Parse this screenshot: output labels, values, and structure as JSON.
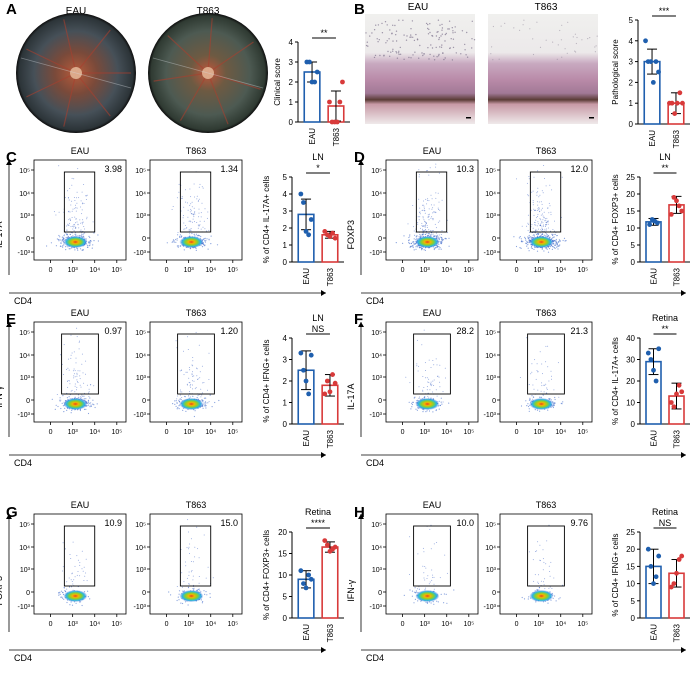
{
  "colors": {
    "eau": "#1f5fae",
    "t863": "#d83a3a",
    "axis": "#000000"
  },
  "panels": {
    "A": {
      "letter": "A",
      "images": [
        "EAU",
        "T863"
      ],
      "chart": {
        "ylabel": "Clinical score",
        "categories": [
          "EAU",
          "T863"
        ],
        "sig": "**",
        "ylim": [
          0,
          4
        ],
        "ticks": [
          0,
          1,
          2,
          3,
          4
        ],
        "means": [
          2.5,
          0.8
        ],
        "err": [
          0.5,
          0.75
        ],
        "points": [
          [
            3,
            3,
            2,
            2,
            2.5
          ],
          [
            1,
            0,
            0,
            0,
            1,
            2
          ]
        ]
      }
    },
    "B": {
      "letter": "B",
      "images": [
        "EAU",
        "T863"
      ],
      "chart": {
        "ylabel": "Pathological score",
        "categories": [
          "EAU",
          "T863"
        ],
        "sig": "***",
        "ylim": [
          0,
          5
        ],
        "ticks": [
          0,
          1,
          2,
          3,
          4,
          5
        ],
        "means": [
          3.0,
          1.0
        ],
        "err": [
          0.6,
          0.5
        ],
        "points": [
          [
            4,
            3,
            3,
            2,
            3,
            2.5
          ],
          [
            1,
            1,
            0.5,
            1,
            1.5,
            1
          ]
        ]
      }
    },
    "C": {
      "letter": "C",
      "ylabel": "IL-17A",
      "xlabel": "CD4",
      "flows": [
        {
          "title": "EAU",
          "pct": "3.98"
        },
        {
          "title": "T863",
          "pct": "1.34"
        }
      ],
      "chart": {
        "title": "LN",
        "ylabel": "% of CD4+ IL-17A+ cells",
        "categories": [
          "EAU",
          "T863"
        ],
        "sig": "*",
        "ylim": [
          0,
          5
        ],
        "ticks": [
          0,
          1,
          2,
          3,
          4,
          5
        ],
        "means": [
          2.8,
          1.6
        ],
        "err": [
          0.9,
          0.2
        ],
        "points": [
          [
            4,
            3.5,
            1.8,
            1.6,
            2.5
          ],
          [
            1.8,
            1.6,
            1.5,
            1.7,
            1.4
          ]
        ]
      }
    },
    "D": {
      "letter": "D",
      "ylabel": "FOXP3",
      "xlabel": "CD4",
      "flows": [
        {
          "title": "EAU",
          "pct": "10.3"
        },
        {
          "title": "T863",
          "pct": "12.0"
        }
      ],
      "chart": {
        "title": "LN",
        "ylabel": "% of CD4+ FOXP3+ cells",
        "categories": [
          "EAU",
          "T863"
        ],
        "sig": "**",
        "ylim": [
          0,
          25
        ],
        "ticks": [
          0,
          5,
          10,
          15,
          20,
          25
        ],
        "means": [
          11.8,
          16.8
        ],
        "err": [
          1.0,
          2.5
        ],
        "points": [
          [
            11,
            12.5,
            12,
            11.5
          ],
          [
            14,
            19,
            18,
            16.5,
            15
          ]
        ]
      }
    },
    "E": {
      "letter": "E",
      "ylabel": "IFN-γ",
      "xlabel": "CD4",
      "flows": [
        {
          "title": "EAU",
          "pct": "0.97"
        },
        {
          "title": "T863",
          "pct": "1.20"
        }
      ],
      "chart": {
        "title": "LN",
        "ylabel": "% of CD4+ IFNG+ cells",
        "categories": [
          "EAU",
          "T863"
        ],
        "sig": "NS",
        "ylim": [
          0,
          4
        ],
        "ticks": [
          0,
          1,
          2,
          3,
          4
        ],
        "means": [
          2.5,
          1.8
        ],
        "err": [
          0.9,
          0.5
        ],
        "points": [
          [
            3.3,
            2.5,
            2.0,
            1.4,
            3.2
          ],
          [
            1.4,
            2.0,
            1.5,
            2.3,
            1.9
          ]
        ]
      }
    },
    "F": {
      "letter": "F",
      "ylabel": "IL-17A",
      "xlabel": "CD4",
      "flows": [
        {
          "title": "EAU",
          "pct": "28.2"
        },
        {
          "title": "T863",
          "pct": "21.3"
        }
      ],
      "chart": {
        "title": "Retina",
        "ylabel": "% of CD4+ IL-17A+ cells",
        "categories": [
          "EAU",
          "T863"
        ],
        "sig": "**",
        "ylim": [
          0,
          40
        ],
        "ticks": [
          0,
          10,
          20,
          30,
          40
        ],
        "means": [
          29,
          13
        ],
        "err": [
          6,
          6
        ],
        "points": [
          [
            33,
            30,
            25,
            20,
            35
          ],
          [
            10,
            8,
            14,
            18,
            15
          ]
        ]
      }
    },
    "G": {
      "letter": "G",
      "ylabel": "FOXP3",
      "xlabel": "CD4",
      "flows": [
        {
          "title": "EAU",
          "pct": "10.9"
        },
        {
          "title": "T863",
          "pct": "15.0"
        }
      ],
      "chart": {
        "title": "Retina",
        "ylabel": "% of CD4+ FOXP3+ cells",
        "categories": [
          "EAU",
          "T863"
        ],
        "sig": "****",
        "ylim": [
          0,
          20
        ],
        "ticks": [
          0,
          5,
          10,
          15,
          20
        ],
        "means": [
          9,
          16.5
        ],
        "err": [
          2,
          1.2
        ],
        "points": [
          [
            11,
            8,
            7,
            10,
            9
          ],
          [
            18,
            17,
            15.5,
            16,
            16.5
          ]
        ]
      }
    },
    "H": {
      "letter": "H",
      "ylabel": "IFN-γ",
      "xlabel": "CD4",
      "flows": [
        {
          "title": "EAU",
          "pct": "10.0"
        },
        {
          "title": "T863",
          "pct": "9.76"
        }
      ],
      "chart": {
        "title": "Retina",
        "ylabel": "% of CD4+ IFNG+ cells",
        "categories": [
          "EAU",
          "T863"
        ],
        "sig": "NS",
        "ylim": [
          0,
          25
        ],
        "ticks": [
          0,
          5,
          10,
          15,
          20,
          25
        ],
        "means": [
          15,
          13
        ],
        "err": [
          5,
          4
        ],
        "points": [
          [
            20,
            15,
            10,
            12,
            18
          ],
          [
            9,
            10,
            13,
            17,
            18
          ]
        ]
      }
    }
  },
  "flow_axis": {
    "xticks": [
      "0",
      "10³",
      "10⁴",
      "10⁵"
    ],
    "yticks": [
      "10⁵",
      "10⁴",
      "10³",
      "0",
      "-10³"
    ]
  }
}
